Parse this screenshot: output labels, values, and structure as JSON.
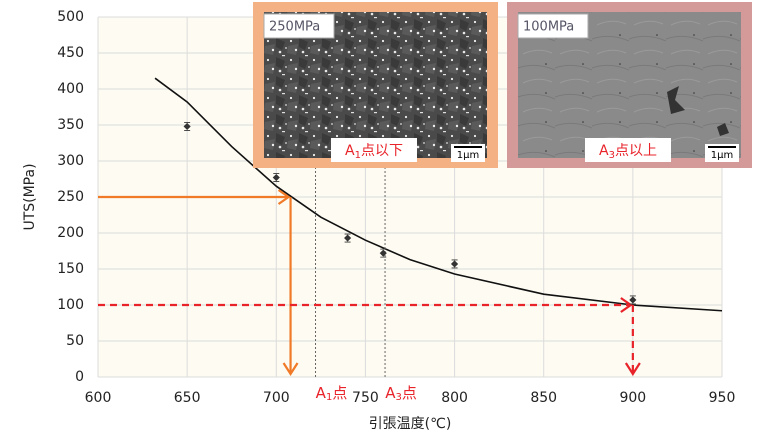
{
  "chart_data": {
    "type": "scatter",
    "y_label": "UTS(MPa)",
    "x_label": "引張温度(℃)",
    "xlim": [
      600,
      950
    ],
    "ylim": [
      0,
      500
    ],
    "xticks": [
      600,
      650,
      700,
      750,
      800,
      850,
      900,
      950
    ],
    "yticks": [
      0,
      50,
      100,
      150,
      200,
      250,
      300,
      350,
      400,
      450,
      500
    ],
    "grid": true,
    "x": [
      650,
      700,
      740,
      760,
      800,
      900
    ],
    "values": [
      348,
      277,
      193,
      172,
      157,
      107
    ],
    "color": "#333333",
    "curve": {
      "x": [
        632,
        650,
        675,
        700,
        725,
        750,
        775,
        800,
        850,
        900,
        950
      ],
      "y": [
        415,
        382,
        320,
        265,
        222,
        190,
        163,
        143,
        115,
        100,
        92
      ],
      "color": "#111111"
    },
    "arrows": [
      {
        "x": 708,
        "y": 250,
        "color": "#f07a28",
        "dashed": false
      },
      {
        "x": 900,
        "y": 100,
        "color": "#e8232a",
        "dashed": true
      }
    ],
    "transformation_lines": [
      {
        "x": 722,
        "label": {
          "main": "A",
          "sub": "1",
          "suffix": "点"
        }
      },
      {
        "x": 761,
        "label": {
          "main": "A",
          "sub": "3",
          "suffix": "点"
        }
      }
    ],
    "insets": [
      {
        "strength": "250MPa",
        "caption": {
          "main": "A",
          "sub": "1",
          "suffix": "点以下"
        },
        "scale": "1μm",
        "border": "#f4b183"
      },
      {
        "strength": "100MPa",
        "caption": {
          "main": "A",
          "sub": "3",
          "suffix": "点以上"
        },
        "scale": "1μm",
        "border": "#d49a9a"
      }
    ]
  }
}
